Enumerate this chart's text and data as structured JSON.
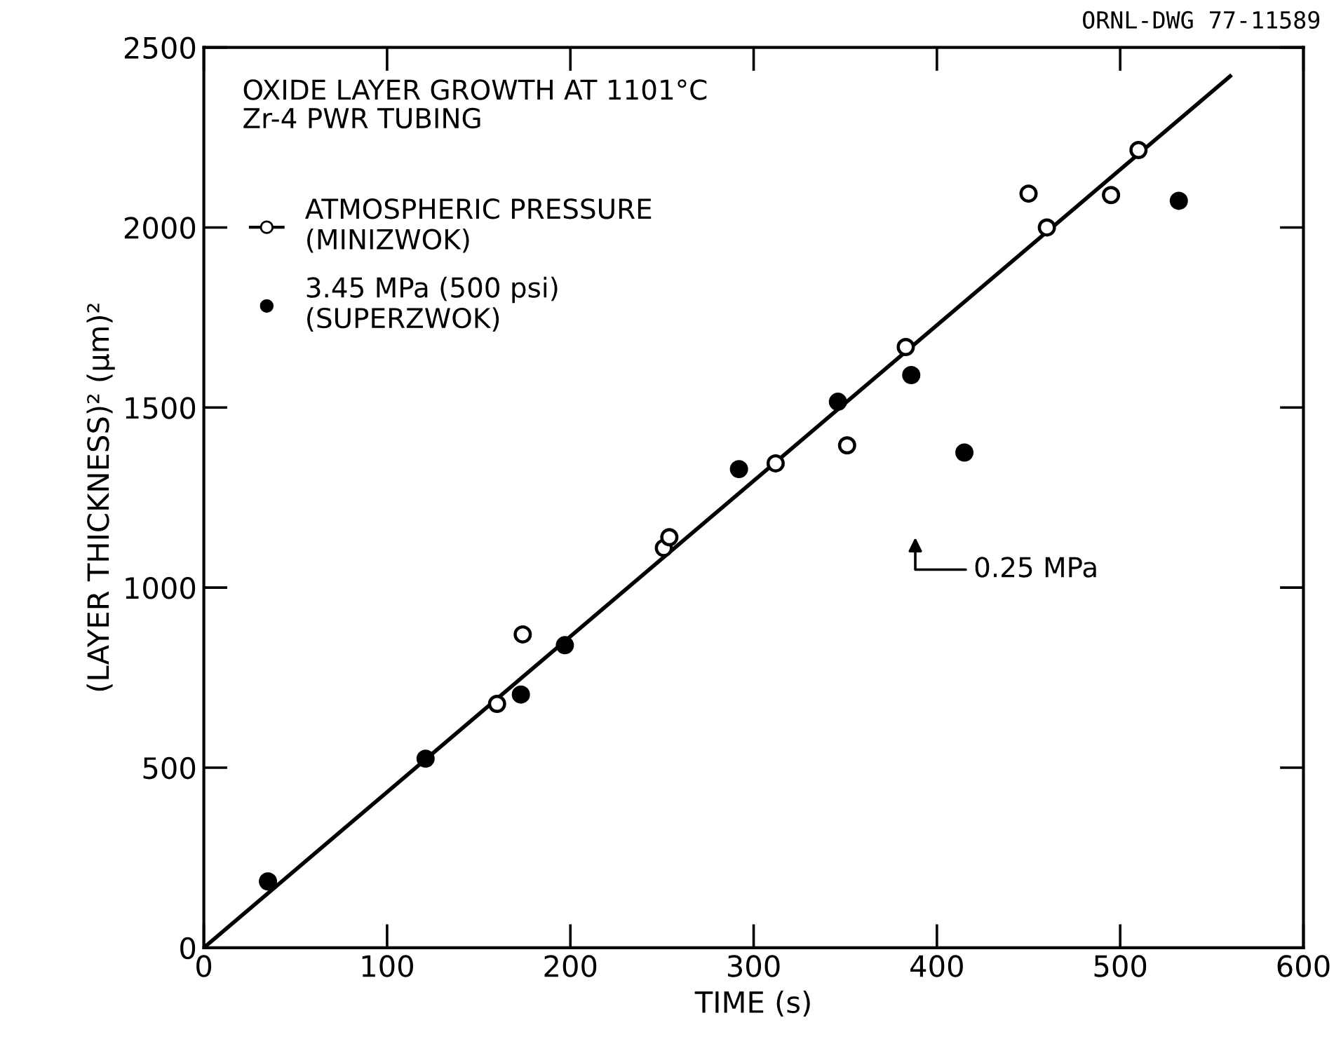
{
  "chart_data": {
    "type": "scatter",
    "xlabel": "TIME (s)",
    "ylabel": "(LAYER THICKNESS)² (μm)²",
    "xlim": [
      0,
      600
    ],
    "xticks": [
      0,
      100,
      200,
      300,
      400,
      500,
      600
    ],
    "ylim": [
      0,
      2500
    ],
    "yticks": [
      0,
      500,
      1000,
      1500,
      2000,
      2500
    ],
    "grid": false,
    "legend": "top left",
    "annotations": [
      "ORNL-DWG 77-11589",
      "OXIDE LAYER GROWTH AT 1101°C\nZr-4 PWR TUBING",
      "0.25 MPa"
    ],
    "series": [
      {
        "name": "ATMOSPHERIC PRESSURE\n(MINIZWOK)",
        "color": "#ffffff",
        "marker": "circle",
        "x": [
          160,
          174,
          251,
          254,
          312,
          351,
          383,
          450,
          460,
          495,
          510
        ],
        "values": [
          677,
          870,
          1110,
          1140,
          1345,
          1395,
          1668,
          2094,
          2000,
          2090,
          2215
        ]
      },
      {
        "name": "3.45 MPa (500 psi)\n(SUPERZWOK)",
        "color": "#000000",
        "marker": "circle",
        "x": [
          35,
          121,
          173,
          197,
          292,
          346,
          386,
          415,
          532
        ],
        "values": [
          184,
          525,
          703,
          840,
          1329,
          1516,
          1590,
          1375,
          2074
        ]
      },
      {
        "type": "line",
        "color": "#000000",
        "marker": "none",
        "x": [
          0,
          560
        ],
        "values": [
          0,
          2420
        ]
      }
    ]
  }
}
